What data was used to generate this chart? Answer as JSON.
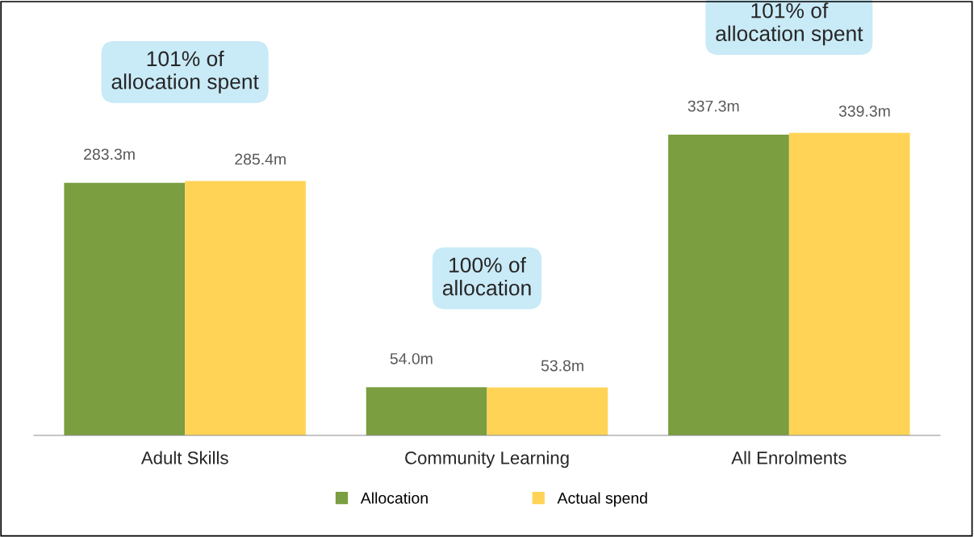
{
  "chart_data": {
    "type": "bar",
    "categories": [
      "Adult Skills",
      "Community Learning",
      "All Enrolments"
    ],
    "series": [
      {
        "name": "Allocation",
        "color": "#7a9e40",
        "values": [
          283.3,
          54.0,
          337.3
        ],
        "value_labels": [
          "283.3m",
          "54.0m",
          "337.3m"
        ]
      },
      {
        "name": "Actual spend",
        "color": "#ffd456",
        "values": [
          285.4,
          53.8,
          339.3
        ],
        "value_labels": [
          "285.4m",
          "53.8m",
          "339.3m"
        ]
      }
    ],
    "annotations": [
      "101% of\nallocation spent",
      "100% of\nallocation",
      "101% of\nallocation spent"
    ],
    "legend": "bottom"
  }
}
